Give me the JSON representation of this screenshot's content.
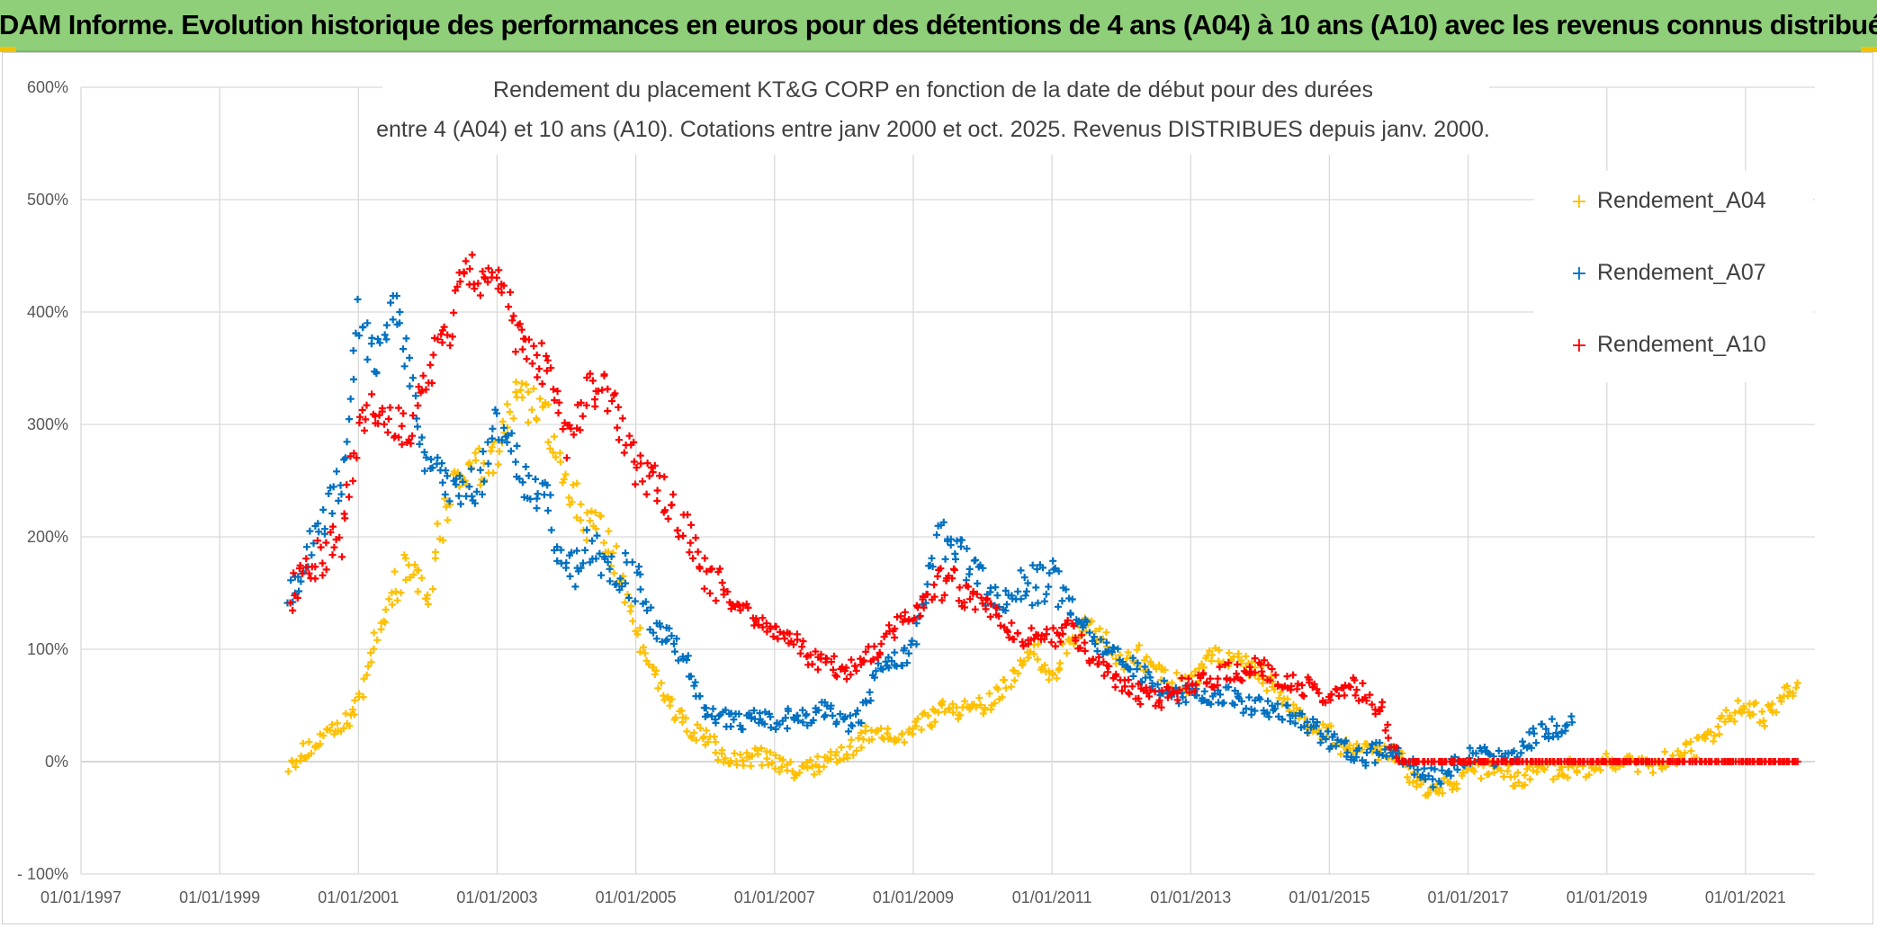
{
  "banner": {
    "title": "ADAM Informe. Evolution historique des performances en euros pour des détentions de 4 ans (A04) à 10 ans (A10) avec les revenus connus distribués"
  },
  "colors": {
    "banner_bg": "#8fcf7a",
    "A04": "#ffc000",
    "A07": "#0070c0",
    "A10": "#ff0000",
    "grid": "#d9d9d9",
    "axis_text": "#595959"
  },
  "chart_data": {
    "type": "scatter",
    "title_lines": [
      "Rendement du placement KT&G CORP en fonction de la date de début pour des durées",
      "entre 4 (A04) et 10 ans (A10). Cotations entre janv 2000 et oct. 2025.  Revenus DISTRIBUES depuis janv. 2000."
    ],
    "xlabel": "",
    "ylabel": "",
    "xlim": [
      1997.0,
      2022.0
    ],
    "ylim": [
      -100,
      600
    ],
    "x_ticks": [
      1997,
      1999,
      2001,
      2003,
      2005,
      2007,
      2009,
      2011,
      2013,
      2015,
      2017,
      2019,
      2021
    ],
    "x_tick_labels": [
      "01/01/1997",
      "01/01/1999",
      "01/01/2001",
      "01/01/2003",
      "01/01/2005",
      "01/01/2007",
      "01/01/2009",
      "01/01/2011",
      "01/01/2013",
      "01/01/2015",
      "01/01/2017",
      "01/01/2019",
      "01/01/2021"
    ],
    "y_ticks": [
      -100,
      0,
      100,
      200,
      300,
      400,
      500,
      600
    ],
    "y_tick_labels": [
      "- 100%",
      "0%",
      "100%",
      "200%",
      "300%",
      "400%",
      "500%",
      "600%"
    ],
    "grid": true,
    "legend_position": "top-right",
    "marker": "+",
    "series": [
      {
        "name": "Rendement_A04",
        "color": "#ffc000",
        "x": [
          2000.0,
          2000.25,
          2000.5,
          2000.75,
          2001.0,
          2001.25,
          2001.5,
          2001.75,
          2002.0,
          2002.25,
          2002.5,
          2002.75,
          2003.0,
          2003.25,
          2003.5,
          2003.75,
          2004.0,
          2004.25,
          2004.5,
          2004.75,
          2005.0,
          2005.25,
          2005.5,
          2005.75,
          2006.0,
          2006.25,
          2006.5,
          2006.75,
          2007.0,
          2007.25,
          2007.5,
          2007.75,
          2008.0,
          2008.25,
          2008.5,
          2008.75,
          2009.0,
          2009.25,
          2009.5,
          2009.75,
          2010.0,
          2010.25,
          2010.5,
          2010.75,
          2011.0,
          2011.25,
          2011.5,
          2011.75,
          2012.0,
          2012.25,
          2012.5,
          2012.75,
          2013.0,
          2013.25,
          2013.5,
          2013.75,
          2014.0,
          2014.25,
          2014.5,
          2014.75,
          2015.0,
          2015.25,
          2015.5,
          2015.75,
          2016.0,
          2016.25,
          2016.5,
          2016.75,
          2017.0,
          2017.25,
          2017.5,
          2017.75,
          2018.0,
          2018.25,
          2018.5,
          2018.75,
          2019.0,
          2019.25,
          2019.5,
          2019.75,
          2020.0,
          2020.25,
          2020.5,
          2020.75,
          2021.0,
          2021.25,
          2021.5,
          2021.75
        ],
        "y": [
          0,
          10,
          20,
          30,
          50,
          110,
          150,
          180,
          150,
          230,
          260,
          260,
          280,
          320,
          320,
          300,
          250,
          220,
          200,
          170,
          120,
          80,
          50,
          30,
          20,
          5,
          0,
          5,
          0,
          -10,
          -5,
          0,
          5,
          20,
          30,
          20,
          30,
          40,
          50,
          45,
          50,
          60,
          80,
          100,
          70,
          110,
          120,
          110,
          90,
          95,
          80,
          70,
          70,
          90,
          95,
          90,
          80,
          60,
          45,
          30,
          25,
          10,
          10,
          5,
          5,
          -20,
          -25,
          -20,
          -10,
          -5,
          -10,
          -15,
          -5,
          -10,
          -5,
          -10,
          0,
          0,
          -5,
          0,
          5,
          10,
          20,
          40,
          50,
          40,
          55,
          70
        ]
      },
      {
        "name": "Rendement_A07",
        "color": "#0070c0",
        "x": [
          2000.0,
          2000.25,
          2000.5,
          2000.75,
          2001.0,
          2001.25,
          2001.5,
          2001.75,
          2002.0,
          2002.25,
          2002.5,
          2002.75,
          2003.0,
          2003.25,
          2003.5,
          2003.75,
          2004.0,
          2004.25,
          2004.5,
          2004.75,
          2005.0,
          2005.25,
          2005.5,
          2005.75,
          2006.0,
          2006.25,
          2006.5,
          2006.75,
          2007.0,
          2007.25,
          2007.5,
          2007.75,
          2008.0,
          2008.25,
          2008.5,
          2008.75,
          2009.0,
          2009.25,
          2009.5,
          2009.75,
          2010.0,
          2010.25,
          2010.5,
          2010.75,
          2011.0,
          2011.25,
          2011.5,
          2011.75,
          2012.0,
          2012.25,
          2012.5,
          2012.75,
          2013.0,
          2013.25,
          2013.5,
          2013.75,
          2014.0,
          2014.25,
          2014.5,
          2014.75,
          2015.0,
          2015.25,
          2015.5,
          2015.75,
          2016.0,
          2016.25,
          2016.5,
          2016.75,
          2017.0,
          2017.25,
          2017.5,
          2017.75,
          2018.0,
          2018.25,
          2018.5
        ],
        "y": [
          150,
          180,
          220,
          250,
          400,
          350,
          420,
          340,
          260,
          250,
          240,
          250,
          300,
          270,
          240,
          230,
          160,
          190,
          180,
          170,
          160,
          120,
          110,
          90,
          40,
          40,
          35,
          40,
          35,
          40,
          40,
          50,
          30,
          40,
          90,
          90,
          100,
          190,
          200,
          180,
          160,
          140,
          150,
          160,
          160,
          140,
          120,
          100,
          90,
          80,
          70,
          60,
          60,
          60,
          60,
          50,
          50,
          45,
          40,
          30,
          20,
          10,
          5,
          10,
          10,
          -10,
          -15,
          -5,
          5,
          5,
          0,
          10,
          25,
          30,
          35
        ]
      },
      {
        "name": "Rendement_A10",
        "color": "#ff0000",
        "x": [
          2000.0,
          2000.25,
          2000.5,
          2000.75,
          2001.0,
          2001.25,
          2001.5,
          2001.75,
          2002.0,
          2002.25,
          2002.5,
          2002.75,
          2003.0,
          2003.25,
          2003.5,
          2003.75,
          2004.0,
          2004.25,
          2004.5,
          2004.75,
          2005.0,
          2005.25,
          2005.5,
          2005.75,
          2006.0,
          2006.25,
          2006.5,
          2006.75,
          2007.0,
          2007.25,
          2007.5,
          2007.75,
          2008.0,
          2008.25,
          2008.5,
          2008.75,
          2009.0,
          2009.25,
          2009.5,
          2009.75,
          2010.0,
          2010.25,
          2010.5,
          2010.75,
          2011.0,
          2011.25,
          2011.5,
          2011.75,
          2012.0,
          2012.25,
          2012.5,
          2012.75,
          2013.0,
          2013.25,
          2013.5,
          2013.75,
          2014.0,
          2014.25,
          2014.5,
          2014.75,
          2015.0,
          2015.25,
          2015.5,
          2015.75,
          2016.0,
          2016.25,
          2016.5,
          2016.75,
          2017.0,
          2017.25,
          2017.5,
          2017.75,
          2018.0,
          2018.25,
          2018.5,
          2018.75,
          2019.0,
          2019.25,
          2019.5,
          2019.75,
          2020.0,
          2020.25,
          2020.5,
          2020.75,
          2021.0,
          2021.25,
          2021.5,
          2021.75
        ],
        "y": [
          150,
          180,
          180,
          200,
          300,
          320,
          300,
          290,
          350,
          370,
          450,
          420,
          440,
          380,
          360,
          350,
          280,
          320,
          340,
          300,
          260,
          250,
          230,
          200,
          170,
          150,
          140,
          120,
          120,
          110,
          90,
          90,
          80,
          90,
          100,
          120,
          130,
          150,
          160,
          150,
          140,
          130,
          110,
          110,
          110,
          120,
          100,
          80,
          70,
          60,
          55,
          60,
          70,
          70,
          80,
          80,
          85,
          75,
          70,
          65,
          60,
          70,
          60,
          45,
          0,
          0,
          0,
          0,
          0,
          0,
          0,
          0,
          0,
          0,
          0,
          0,
          0,
          0,
          0,
          0,
          0,
          0,
          0,
          0,
          0,
          0,
          0,
          0
        ]
      }
    ]
  }
}
